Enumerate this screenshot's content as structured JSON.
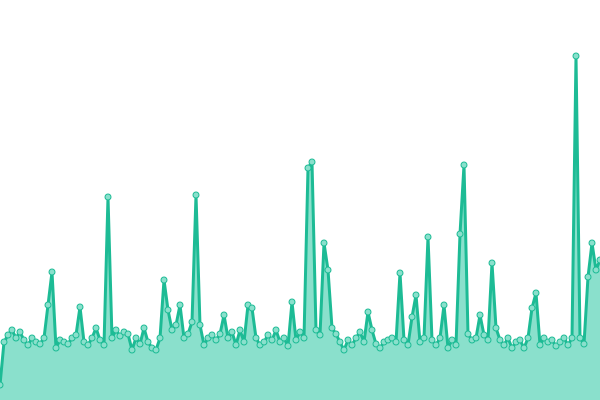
{
  "chart_data": {
    "type": "area",
    "values": [
      15,
      58,
      65,
      70,
      62,
      68,
      60,
      55,
      62,
      58,
      56,
      62,
      95,
      128,
      52,
      60,
      58,
      56,
      62,
      65,
      93,
      58,
      55,
      62,
      72,
      60,
      55,
      203,
      62,
      70,
      64,
      68,
      66,
      50,
      62,
      56,
      72,
      58,
      52,
      50,
      62,
      120,
      90,
      70,
      75,
      95,
      62,
      66,
      78,
      205,
      75,
      55,
      62,
      65,
      60,
      66,
      85,
      62,
      68,
      55,
      70,
      58,
      95,
      92,
      62,
      55,
      58,
      65,
      60,
      70,
      58,
      62,
      54,
      98,
      60,
      68,
      62,
      232,
      238,
      70,
      65,
      157,
      130,
      72,
      66,
      58,
      50,
      60,
      55,
      62,
      68,
      58,
      88,
      70,
      56,
      52,
      58,
      60,
      62,
      58,
      127,
      60,
      55,
      83,
      105,
      58,
      62,
      163,
      60,
      55,
      62,
      95,
      52,
      60,
      55,
      166,
      235,
      66,
      60,
      62,
      85,
      65,
      60,
      137,
      72,
      60,
      55,
      62,
      52,
      58,
      60,
      52,
      62,
      92,
      107,
      55,
      62,
      58,
      60,
      54,
      58,
      62,
      55,
      62,
      344,
      62,
      56,
      123,
      157,
      130,
      140
    ],
    "color": "#1dbb95",
    "fill": "#8ae0cc",
    "ylim": [
      0,
      400
    ]
  }
}
